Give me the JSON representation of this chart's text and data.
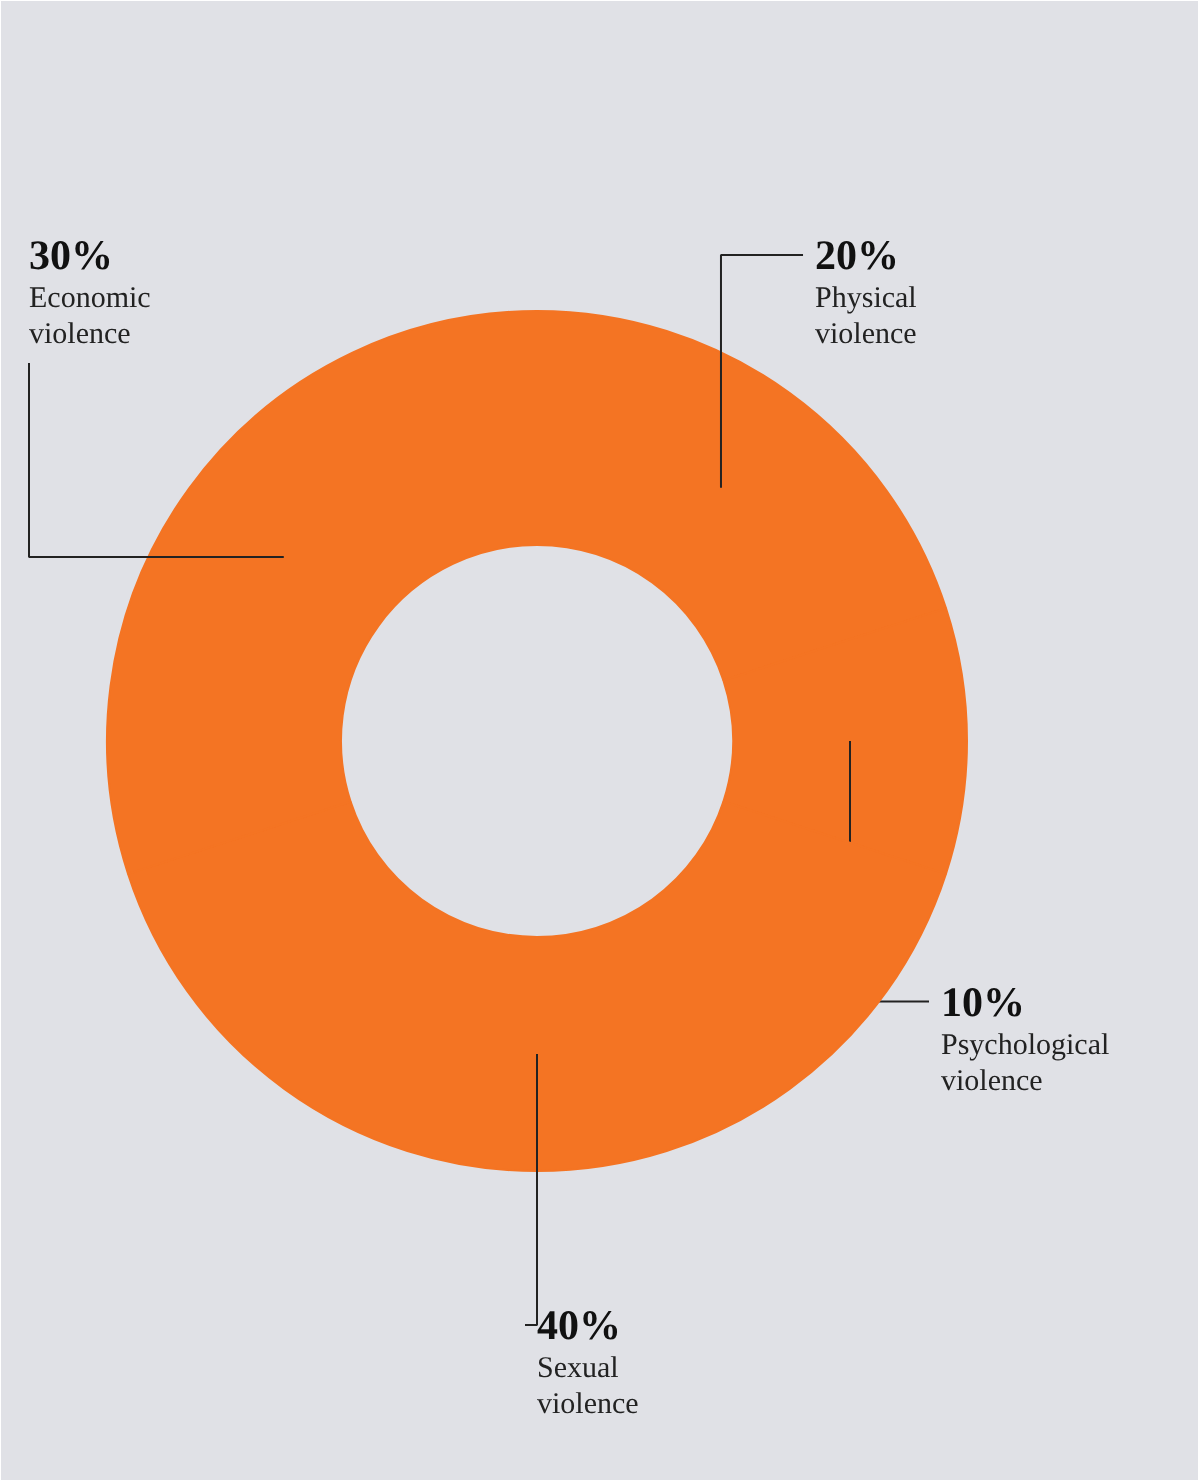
{
  "chart_data": {
    "type": "donut",
    "categories": [
      "Physical violence",
      "Psychological violence",
      "Sexual violence",
      "Economic violence"
    ],
    "values": [
      20,
      10,
      40,
      30
    ],
    "colors": [
      "#f47423",
      "#f47423",
      "#f47423",
      "#f47423"
    ],
    "value_labels": [
      "20%",
      "10%",
      "40%",
      "30%"
    ]
  }
}
